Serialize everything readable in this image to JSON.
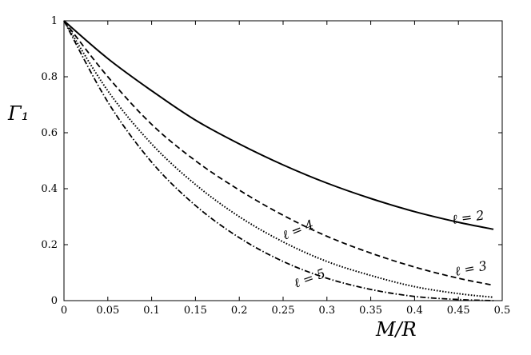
{
  "chart_data": {
    "type": "line",
    "xlabel": "M/R",
    "ylabel": "Γ₁",
    "xlim": [
      0,
      0.5
    ],
    "ylim": [
      0,
      1
    ],
    "grid": false,
    "xticks": [
      "0",
      "0.05",
      "0.1",
      "0.15",
      "0.2",
      "0.25",
      "0.3",
      "0.35",
      "0.4",
      "0.45",
      "0.5"
    ],
    "yticks": [
      "0",
      "0.2",
      "0.4",
      "0.6",
      "0.8",
      "1"
    ],
    "series": [
      {
        "name": "ℓ = 2",
        "style": "solid",
        "x": [
          0,
          0.05,
          0.1,
          0.15,
          0.2,
          0.25,
          0.3,
          0.35,
          0.4,
          0.45,
          0.49
        ],
        "y": [
          1.0,
          0.865,
          0.75,
          0.645,
          0.56,
          0.485,
          0.42,
          0.365,
          0.318,
          0.28,
          0.255
        ]
      },
      {
        "name": "ℓ = 3",
        "style": "dashed",
        "x": [
          0,
          0.05,
          0.1,
          0.15,
          0.2,
          0.25,
          0.3,
          0.35,
          0.4,
          0.45,
          0.49
        ],
        "y": [
          1.0,
          0.8,
          0.63,
          0.5,
          0.395,
          0.305,
          0.23,
          0.17,
          0.12,
          0.08,
          0.055
        ]
      },
      {
        "name": "ℓ = 4",
        "style": "dotted",
        "x": [
          0,
          0.05,
          0.1,
          0.15,
          0.2,
          0.25,
          0.3,
          0.35,
          0.4,
          0.45,
          0.49
        ],
        "y": [
          1.0,
          0.75,
          0.56,
          0.415,
          0.3,
          0.21,
          0.14,
          0.09,
          0.05,
          0.025,
          0.012
        ]
      },
      {
        "name": "ℓ = 5",
        "style": "dashdot",
        "x": [
          0,
          0.05,
          0.1,
          0.15,
          0.2,
          0.25,
          0.3,
          0.35,
          0.4,
          0.45,
          0.49
        ],
        "y": [
          1.0,
          0.71,
          0.495,
          0.34,
          0.225,
          0.14,
          0.08,
          0.04,
          0.015,
          0.004,
          0.0
        ]
      }
    ]
  }
}
